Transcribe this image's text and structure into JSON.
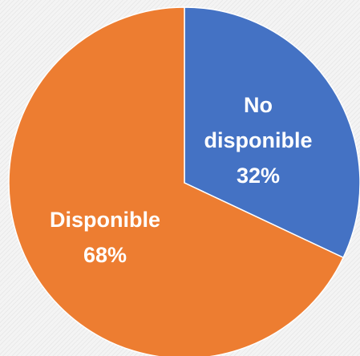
{
  "chart_data": {
    "type": "pie",
    "start_angle_deg": 0,
    "direction": "clockwise",
    "slices": [
      {
        "label_lines": [
          "No",
          "disponible",
          "32%"
        ],
        "value": 32,
        "color": "#4472c4"
      },
      {
        "label_lines": [
          "Disponible",
          "68%"
        ],
        "value": 68,
        "color": "#ed7d31"
      }
    ],
    "edge_color": "#ffffff",
    "legend": "none"
  }
}
